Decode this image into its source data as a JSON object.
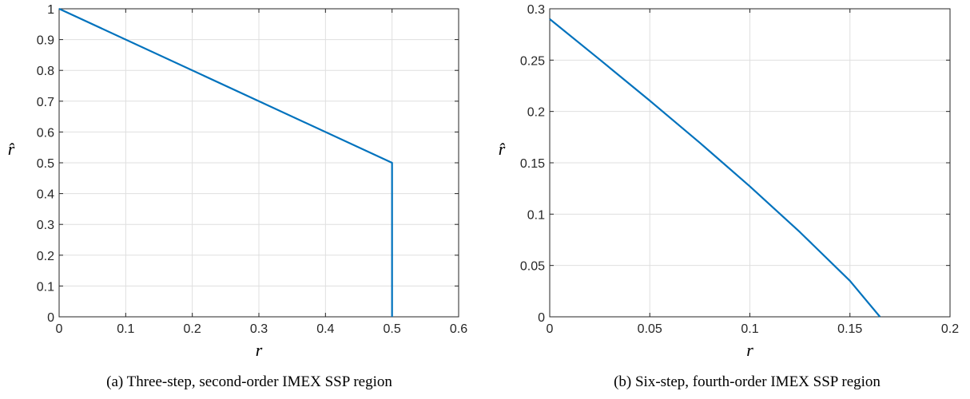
{
  "chart_data": [
    {
      "type": "line",
      "caption": "(a) Three-step, second-order IMEX SSP region",
      "xlabel": "r",
      "ylabel": "r̂",
      "xlim": [
        0,
        0.6
      ],
      "ylim": [
        0,
        1
      ],
      "xticks": [
        0,
        0.1,
        0.2,
        0.3,
        0.4,
        0.5,
        0.6
      ],
      "xtick_labels": [
        "0",
        "0.1",
        "0.2",
        "0.3",
        "0.4",
        "0.5",
        "0.6"
      ],
      "yticks": [
        0,
        0.1,
        0.2,
        0.3,
        0.4,
        0.5,
        0.6,
        0.7,
        0.8,
        0.9,
        1
      ],
      "ytick_labels": [
        "0",
        "0.1",
        "0.2",
        "0.3",
        "0.4",
        "0.5",
        "0.6",
        "0.7",
        "0.8",
        "0.9",
        "1"
      ],
      "grid": true,
      "series": [
        {
          "x": [
            0,
            0.5,
            0.5
          ],
          "y": [
            1,
            0.5,
            0
          ],
          "color": "#0072BD"
        }
      ]
    },
    {
      "type": "line",
      "caption": "(b) Six-step, fourth-order IMEX SSP region",
      "xlabel": "r",
      "ylabel": "r̂",
      "xlim": [
        0,
        0.2
      ],
      "ylim": [
        0,
        0.3
      ],
      "xticks": [
        0,
        0.05,
        0.1,
        0.15,
        0.2
      ],
      "xtick_labels": [
        "0",
        "0.05",
        "0.1",
        "0.15",
        "0.2"
      ],
      "yticks": [
        0,
        0.05,
        0.1,
        0.15,
        0.2,
        0.25,
        0.3
      ],
      "ytick_labels": [
        "0",
        "0.05",
        "0.1",
        "0.15",
        "0.2",
        "0.25",
        "0.3"
      ],
      "grid": true,
      "series": [
        {
          "x": [
            0,
            0.025,
            0.05,
            0.075,
            0.1,
            0.125,
            0.15,
            0.165
          ],
          "y": [
            0.29,
            0.2505,
            0.2105,
            0.1695,
            0.127,
            0.0825,
            0.035,
            0.0
          ],
          "color": "#0072BD"
        }
      ]
    }
  ]
}
